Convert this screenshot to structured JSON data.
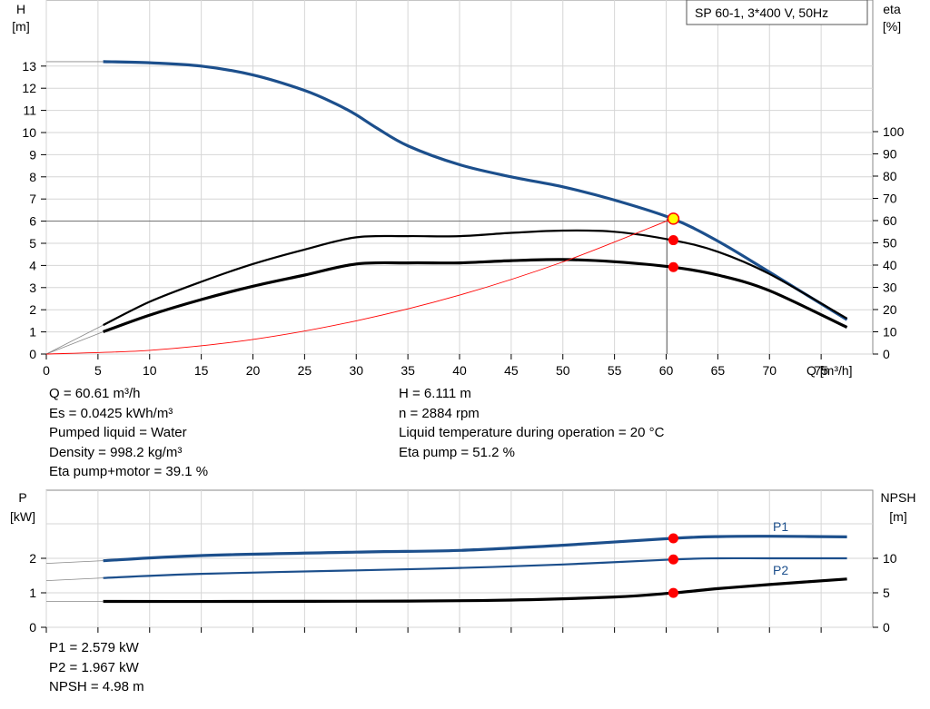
{
  "chart_data": [
    {
      "type": "line",
      "title": "SP 60-1, 3*400 V, 50Hz",
      "xlabel": "Q [m³/h]",
      "ylabel": "H [m]",
      "ylabel_right": "eta [%]",
      "xlim": [
        0,
        80
      ],
      "ylim": [
        0,
        14
      ],
      "ylim_right": [
        0,
        100
      ],
      "x_ticks": [
        "0",
        "5",
        "10",
        "15",
        "20",
        "25",
        "30",
        "35",
        "40",
        "45",
        "50",
        "55",
        "60",
        "65",
        "70",
        "75"
      ],
      "y_ticks": [
        "0",
        "1",
        "2",
        "3",
        "4",
        "5",
        "6",
        "7",
        "8",
        "9",
        "10",
        "11",
        "12",
        "13"
      ],
      "y_right_ticks": [
        "0",
        "10",
        "20",
        "30",
        "40",
        "50",
        "60",
        "70",
        "80",
        "90",
        "100"
      ],
      "grid": true,
      "series": [
        {
          "role": "head",
          "axis": "left",
          "color": "#1c4f8c",
          "x": [
            5.5,
            10,
            15,
            20,
            25,
            28,
            30,
            32,
            35,
            40,
            45,
            50,
            55,
            60.61,
            65,
            70,
            77.5
          ],
          "y": [
            13.2,
            13.15,
            13.0,
            12.6,
            11.9,
            11.3,
            10.8,
            10.2,
            9.4,
            8.55,
            8.0,
            7.55,
            6.95,
            6.111,
            5.1,
            3.7,
            1.55
          ]
        },
        {
          "role": "eta pump",
          "axis": "right",
          "color": "#000000",
          "x": [
            5.5,
            10,
            15,
            20,
            25,
            30,
            35,
            40,
            45,
            50,
            55,
            60.61,
            65,
            70,
            77.5
          ],
          "y": [
            13,
            23.5,
            32.5,
            40.5,
            47,
            52.5,
            53,
            53,
            54.5,
            55.5,
            55,
            51.2,
            46,
            36,
            16
          ]
        },
        {
          "role": "eta pump+motor",
          "axis": "right",
          "color": "#000000",
          "x": [
            5.5,
            10,
            15,
            20,
            25,
            30,
            35,
            40,
            45,
            50,
            55,
            60.61,
            65,
            70,
            77.5
          ],
          "y": [
            10,
            17.5,
            24.5,
            30.5,
            35.5,
            40.5,
            41,
            41,
            42,
            42.5,
            41.5,
            39.1,
            35.5,
            28.5,
            12
          ]
        },
        {
          "role": "system curve",
          "axis": "left",
          "color": "#ff0000",
          "x": [
            0,
            10,
            20,
            30,
            40,
            50,
            60.61
          ],
          "y": [
            0,
            0.17,
            0.66,
            1.5,
            2.66,
            4.16,
            6.111
          ]
        }
      ],
      "operating_point": {
        "Q": 60.61,
        "H": 6.111,
        "eta_pump": 51.2,
        "eta_pump_motor": 39.1
      }
    },
    {
      "type": "line",
      "ylabel": "P [kW]",
      "ylabel_right": "NPSH [m]",
      "xlim": [
        0,
        80
      ],
      "ylim": [
        0,
        3
      ],
      "ylim_right": [
        0,
        15
      ],
      "y_ticks": [
        "0",
        "1",
        "2"
      ],
      "y_right_ticks": [
        "0",
        "5",
        "10"
      ],
      "grid": true,
      "series": [
        {
          "name": "P1",
          "axis": "left",
          "color": "#1c4f8c",
          "x": [
            5.5,
            15,
            30,
            40,
            50,
            60.61,
            65,
            70,
            77.5
          ],
          "y": [
            1.93,
            2.08,
            2.18,
            2.23,
            2.38,
            2.579,
            2.63,
            2.64,
            2.62
          ]
        },
        {
          "name": "P2",
          "axis": "left",
          "color": "#1c4f8c",
          "x": [
            5.5,
            15,
            30,
            40,
            50,
            60.61,
            65,
            70,
            77.5
          ],
          "y": [
            1.43,
            1.55,
            1.65,
            1.72,
            1.82,
            1.967,
            2.0,
            2.0,
            2.0
          ]
        },
        {
          "name": "NPSH",
          "axis": "right",
          "color": "#000000",
          "x": [
            5.5,
            20,
            35,
            45,
            55,
            60.61,
            65,
            70,
            77.5
          ],
          "y": [
            3.75,
            3.75,
            3.8,
            3.95,
            4.4,
            4.98,
            5.6,
            6.2,
            7.0
          ]
        }
      ],
      "operating_point": {
        "Q": 60.61,
        "P1": 2.579,
        "P2": 1.967,
        "NPSH": 4.98
      }
    }
  ],
  "info_left": [
    "Q = 60.61 m³/h",
    "Es = 0.0425 kWh/m³",
    "Pumped liquid = Water",
    "Density = 998.2 kg/m³",
    "Eta pump+motor = 39.1 %"
  ],
  "info_right": [
    "H = 6.111 m",
    "n = 2884 rpm",
    "Liquid temperature during operation = 20 °C",
    "Eta pump = 51.2 %"
  ],
  "info_bottom": [
    "P1 = 2.579 kW",
    "P2 = 1.967 kW",
    "NPSH = 4.98 m"
  ],
  "labels": {
    "top_left_1": "H",
    "top_left_2": "[m]",
    "top_right_1": "eta",
    "top_right_2": "[%]",
    "bot_left_1": "P",
    "bot_left_2": "[kW]",
    "bot_right_1": "NPSH",
    "bot_right_2": "[m]",
    "p1_tag": "P1",
    "p2_tag": "P2"
  }
}
